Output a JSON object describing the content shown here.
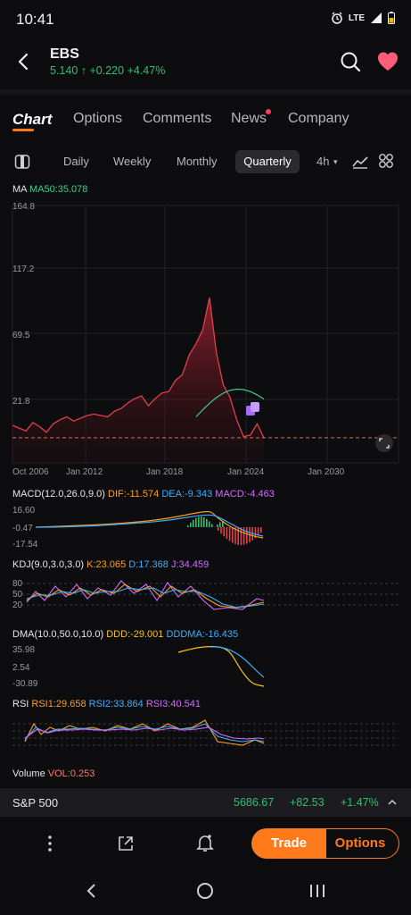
{
  "status": {
    "time": "10:41",
    "network": "LTE"
  },
  "header": {
    "symbol": "EBS",
    "price": "5.140",
    "change": "+0.220",
    "change_pct": "+4.47%",
    "up_color": "#2fbf71",
    "down_color": "#e0404a"
  },
  "tabs": [
    {
      "label": "Chart",
      "active": true
    },
    {
      "label": "Options"
    },
    {
      "label": "Comments"
    },
    {
      "label": "News",
      "has_dot": true
    },
    {
      "label": "Company"
    }
  ],
  "periods": [
    {
      "label": "Daily"
    },
    {
      "label": "Weekly"
    },
    {
      "label": "Monthly"
    },
    {
      "label": "Quarterly",
      "active": true
    },
    {
      "label": "4h"
    }
  ],
  "main": {
    "ma_label": "MA",
    "ma50_label": "MA50:35.078",
    "y_ticks": [
      "164.8",
      "117.2",
      "69.5",
      "21.8"
    ],
    "x_ticks": [
      "Oct 2006",
      "Jan 2012",
      "Jan 2018",
      "Jan 2024",
      "Jan 2030"
    ]
  },
  "chart_data": {
    "type": "line",
    "ylim": [
      0,
      164.8
    ],
    "x": [
      "2006 Q4",
      "2007 Q2",
      "2007 Q4",
      "2008 Q2",
      "2008 Q4",
      "2009 Q2",
      "2009 Q4",
      "2010 Q2",
      "2010 Q4",
      "2011 Q2",
      "2011 Q4",
      "2012 Q2",
      "2012 Q4",
      "2013 Q2",
      "2013 Q4",
      "2014 Q2",
      "2014 Q4",
      "2015 Q2",
      "2015 Q4",
      "2016 Q2",
      "2016 Q4",
      "2017 Q2",
      "2017 Q4",
      "2018 Q2",
      "2018 Q4",
      "2019 Q2",
      "2019 Q4",
      "2020 Q2",
      "2020 Q3",
      "2020 Q4",
      "2021 Q2",
      "2021 Q4",
      "2022 Q2",
      "2022 Q4",
      "2023 Q2",
      "2023 Q4",
      "2024 Q2",
      "2024 Q4"
    ],
    "series": [
      {
        "name": "price",
        "values": [
          14,
          12,
          10,
          16,
          13,
          9,
          15,
          18,
          20,
          17,
          19,
          21,
          22,
          21,
          20,
          24,
          26,
          30,
          33,
          35,
          28,
          33,
          37,
          38,
          46,
          50,
          64,
          72,
          82,
          105,
          66,
          43,
          34,
          18,
          6,
          7,
          15,
          5.1
        ]
      }
    ],
    "ma50": {
      "label": "MA50:35.078",
      "last": 35.078
    },
    "last_price": 5.14
  },
  "macd": {
    "title": "MACD(12.0,26.0,9.0)",
    "dif": "DIF:-11.574",
    "dea": "DEA:-9.343",
    "macd": "MACD:-4.463",
    "y_ticks": [
      "16.60",
      "-0.47",
      "-17.54"
    ]
  },
  "kdj": {
    "title": "KDJ(9.0,3.0,3.0)",
    "k": "K:23.065",
    "d": "D:17.368",
    "j": "J:34.459",
    "y_ticks": [
      "80",
      "50",
      "20"
    ]
  },
  "dma": {
    "title": "DMA(10.0,50.0,10.0)",
    "ddd": "DDD:-29.001",
    "dddma": "DDDMA:-16.435",
    "y_ticks": [
      "35.98",
      "2.54",
      "-30.89"
    ]
  },
  "rsi": {
    "title": "RSI",
    "rsi1": "RSI1:29.658",
    "rsi2": "RSI2:33.864",
    "rsi3": "RSI3:40.541"
  },
  "volume": {
    "title": "Volume",
    "vol": "VOL:0.253"
  },
  "sp500": {
    "name": "S&P 500",
    "value": "5686.67",
    "change": "+82.53",
    "change_pct": "+1.47%"
  },
  "actions": {
    "trade": "Trade",
    "options": "Options"
  },
  "colors": {
    "accent": "#ff7a1a",
    "ma50": "#3ccf8e",
    "dif": "#ff9f1a",
    "dea": "#3ab0ff",
    "macd": "#d36bff",
    "price_line": "#e0404a"
  }
}
